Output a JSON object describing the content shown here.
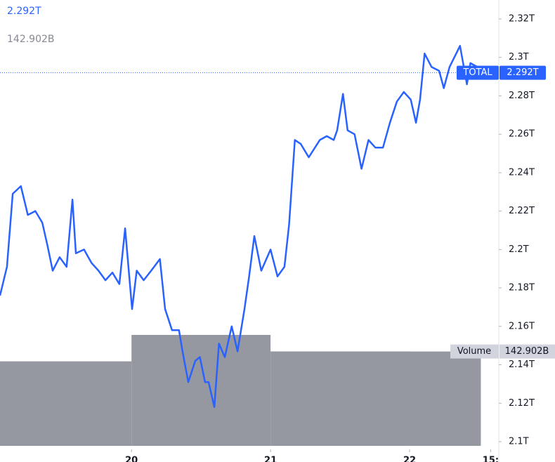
{
  "chart_data": {
    "type": "line",
    "series_name": "TOTAL",
    "last_label": "2.292T",
    "color": "#2962ff",
    "x": [
      1.3,
      2.5,
      3.5,
      4.9,
      6.1,
      7.4,
      8.6,
      9.5,
      10.4,
      11.6,
      12.8,
      13.8,
      14.4,
      15.8,
      17.1,
      18.3,
      19.5,
      20.7,
      21.9,
      22.9,
      24.1,
      24.9,
      26.1,
      27.4,
      28.9,
      29.8,
      31.0,
      32.2,
      32.8,
      33.8,
      35.0,
      35.8,
      36.7,
      37.3,
      38.3,
      39.1,
      40.1,
      41.3,
      42.3,
      43.5,
      44.3,
      45.2,
      46.4,
      48.0,
      49.2,
      50.4,
      51.2,
      52.2,
      53.2,
      54.6,
      56.5,
      57.7,
      58.9,
      59.5,
      60.5,
      61.3,
      62.5,
      63.7,
      64.9,
      66.1,
      67.4,
      68.6,
      69.8,
      71.0,
      72.2,
      73.1,
      73.8,
      74.6,
      75.8,
      77.1,
      77.9,
      78.9,
      80.7,
      81.9,
      82.5,
      83.7,
      84.3
    ],
    "values": [
      2.176,
      2.191,
      2.229,
      2.233,
      2.218,
      2.22,
      2.214,
      2.202,
      2.189,
      2.196,
      2.191,
      2.226,
      2.198,
      2.2,
      2.193,
      2.189,
      2.184,
      2.188,
      2.182,
      2.211,
      2.169,
      2.189,
      2.184,
      2.189,
      2.195,
      2.169,
      2.158,
      2.158,
      2.147,
      2.131,
      2.142,
      2.144,
      2.131,
      2.131,
      2.118,
      2.151,
      2.144,
      2.16,
      2.147,
      2.169,
      2.186,
      2.207,
      2.189,
      2.2,
      2.186,
      2.191,
      2.213,
      2.257,
      2.255,
      2.248,
      2.257,
      2.259,
      2.257,
      2.262,
      2.281,
      2.262,
      2.26,
      2.242,
      2.257,
      2.253,
      2.253,
      2.266,
      2.277,
      2.282,
      2.278,
      2.266,
      2.278,
      2.302,
      2.295,
      2.293,
      2.284,
      2.295,
      2.306,
      2.286,
      2.297,
      2.295,
      2.292
    ],
    "xlim": [
      1.3,
      87.4
    ],
    "xticks": [
      {
        "value": 24,
        "label": "20"
      },
      {
        "value": 48,
        "label": "21"
      },
      {
        "value": 72,
        "label": "22"
      },
      {
        "value": 86,
        "label": "15:"
      }
    ],
    "ylim": [
      2.0981,
      2.3299
    ],
    "yticks": [
      {
        "value": 2.1,
        "label": "2.1T"
      },
      {
        "value": 2.12,
        "label": "2.12T"
      },
      {
        "value": 2.14,
        "label": "2.14T"
      },
      {
        "value": 2.16,
        "label": "2.16T"
      },
      {
        "value": 2.18,
        "label": "2.18T"
      },
      {
        "value": 2.2,
        "label": "2.2T"
      },
      {
        "value": 2.22,
        "label": "2.22T"
      },
      {
        "value": 2.24,
        "label": "2.24T"
      },
      {
        "value": 2.26,
        "label": "2.26T"
      },
      {
        "value": 2.28,
        "label": "2.28T"
      },
      {
        "value": 2.3,
        "label": "2.3T"
      },
      {
        "value": 2.32,
        "label": "2.32T"
      }
    ],
    "volume": {
      "name": "Volume",
      "color": "#9598a1",
      "bins": [
        0,
        24,
        48,
        72,
        84.3
      ],
      "values": [
        128,
        168,
        143,
        142.902
      ],
      "value_labels": [
        null,
        null,
        null,
        "142.902B"
      ]
    }
  }
}
